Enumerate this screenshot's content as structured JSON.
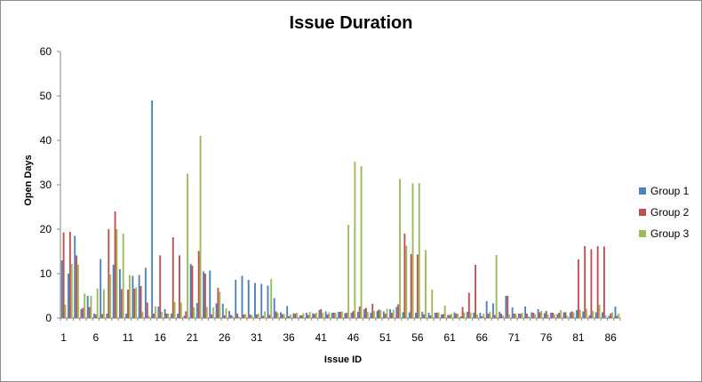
{
  "chart_data": {
    "type": "bar",
    "title": "Issue Duration",
    "xlabel": "Issue ID",
    "ylabel": "Open Days",
    "ylim": [
      0,
      60
    ],
    "yticks": [
      0,
      10,
      20,
      30,
      40,
      50,
      60
    ],
    "x_tick_labels": [
      "1",
      "6",
      "11",
      "16",
      "21",
      "26",
      "31",
      "36",
      "41",
      "46",
      "51",
      "56",
      "61",
      "66",
      "71",
      "76",
      "81",
      "86"
    ],
    "x_tick_every": 5,
    "x": [
      1,
      2,
      3,
      4,
      5,
      6,
      7,
      8,
      9,
      10,
      11,
      12,
      13,
      14,
      15,
      16,
      17,
      18,
      19,
      20,
      21,
      22,
      23,
      24,
      25,
      26,
      27,
      28,
      29,
      30,
      31,
      32,
      33,
      34,
      35,
      36,
      37,
      38,
      39,
      40,
      41,
      42,
      43,
      44,
      45,
      46,
      47,
      48,
      49,
      50,
      51,
      52,
      53,
      54,
      55,
      56,
      57,
      58,
      59,
      60,
      61,
      62,
      63,
      64,
      65,
      66,
      67,
      68,
      69,
      70,
      71,
      72,
      73,
      74,
      75,
      76,
      77,
      78,
      79,
      80,
      81,
      82,
      83,
      84,
      85,
      86,
      87
    ],
    "grid": false,
    "legend_position": "right",
    "series": [
      {
        "name": "Group 1",
        "color": "#4f81bd",
        "values": [
          13,
          10,
          18.5,
          2,
          5,
          1,
          13.3,
          1,
          12,
          11,
          1,
          9.5,
          9.7,
          11.3,
          49,
          2.6,
          2,
          1,
          1,
          0.5,
          12.2,
          3.4,
          10.5,
          10.7,
          3.3,
          3.2,
          1.6,
          8.6,
          9.5,
          8.6,
          7.9,
          7.7,
          7.3,
          4.5,
          1.3,
          2.7,
          1.1,
          0.6,
          1.2,
          1.1,
          1.8,
          1.5,
          1.2,
          1.4,
          1.1,
          1.2,
          1.4,
          2,
          1.2,
          1.6,
          1.5,
          2,
          2.5,
          1.3,
          1.3,
          1.2,
          1.4,
          1.2,
          1.2,
          0.8,
          0.7,
          1.3,
          0.4,
          1.4,
          1.2,
          1.2,
          3.8,
          3.3,
          1.4,
          5,
          2.4,
          1,
          2.6,
          1.3,
          2,
          1.1,
          1.2,
          0.9,
          1.3,
          1.3,
          1.8,
          1.5,
          0.6,
          1.3,
          1.3,
          0.5,
          2.6
        ]
      },
      {
        "name": "Group 2",
        "color": "#c0504d",
        "values": [
          19.3,
          19.4,
          14.1,
          2.3,
          2.5,
          0.8,
          0.9,
          20,
          24,
          6.5,
          6.4,
          6.6,
          7.2,
          3.5,
          1,
          14.1,
          1,
          18.2,
          14.1,
          1.5,
          11.8,
          15.1,
          10,
          0.8,
          6.8,
          0.6,
          0.7,
          1,
          0.8,
          0.8,
          0.8,
          0.5,
          0.7,
          1.5,
          0.9,
          0.4,
          1,
          0.6,
          0.7,
          0.9,
          2,
          0.8,
          1.2,
          1.4,
          1.2,
          1.6,
          2.6,
          2.3,
          3.2,
          1.9,
          1,
          1.2,
          3.1,
          19,
          14.4,
          14.3,
          0.8,
          0.6,
          1.2,
          0.9,
          0.7,
          1,
          2.5,
          5.7,
          12,
          0.4,
          1,
          0.7,
          1,
          5,
          1,
          1,
          1,
          1.2,
          1.3,
          1.6,
          1.2,
          1.2,
          1.3,
          1.5,
          13.2,
          16.2,
          15.5,
          16.2,
          16.1,
          1,
          0.5
        ]
      },
      {
        "name": "Group 3",
        "color": "#9bbb59",
        "values": [
          3,
          12.2,
          12,
          5.5,
          5,
          6.7,
          6.5,
          9.8,
          20,
          19,
          9.7,
          6.9,
          1.4,
          0.5,
          2.6,
          1.4,
          1,
          3.6,
          3.5,
          32.5,
          2.4,
          41,
          2.5,
          2.4,
          5.9,
          2.2,
          0.5,
          0.3,
          0.9,
          0.6,
          1,
          1.5,
          8.8,
          1.2,
          0.9,
          0.8,
          1.2,
          1.1,
          1.4,
          1.2,
          1.2,
          1.3,
          1.2,
          1.5,
          21,
          35.2,
          34.2,
          1.4,
          1.6,
          1.8,
          2.1,
          1.9,
          31.3,
          16.3,
          30.3,
          30.4,
          15.3,
          6.4,
          1.3,
          2.8,
          1,
          1,
          1.2,
          1.3,
          0.8,
          1,
          1.4,
          14.2,
          0.6,
          0.8,
          1,
          1.2,
          0.4,
          0.9,
          1.6,
          0.8,
          0.9,
          1.8,
          0.5,
          1.3,
          1.9,
          2.1,
          1.6,
          3,
          0.6,
          1.3,
          1
        ]
      }
    ]
  }
}
